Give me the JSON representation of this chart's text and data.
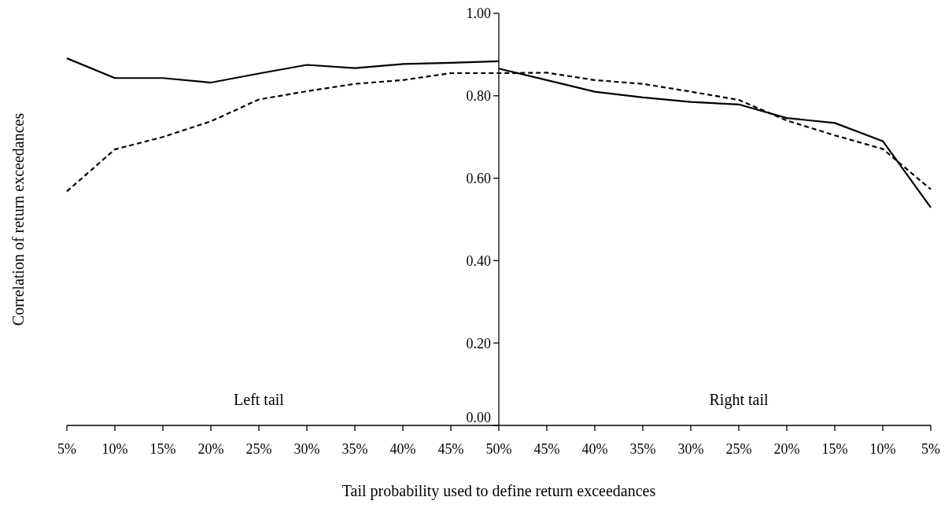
{
  "chart_data": {
    "type": "line",
    "xlabel": "Tail probability used to define return exceedances",
    "ylabel": "Correlation of return exceedances",
    "categories": [
      "5%",
      "10%",
      "15%",
      "20%",
      "25%",
      "30%",
      "35%",
      "40%",
      "45%",
      "50%",
      "45%",
      "40%",
      "35%",
      "30%",
      "25%",
      "20%",
      "15%",
      "10%",
      "5%"
    ],
    "series": [
      {
        "color": "#000000",
        "line_style": "solid",
        "values": [
          0.891,
          0.843,
          0.843,
          0.832,
          0.854,
          0.875,
          0.867,
          0.877,
          0.88,
          0.884,
          null,
          null,
          null,
          null,
          null,
          null,
          null,
          null,
          null
        ]
      },
      {
        "color": "#000000",
        "line_style": "solid",
        "values": [
          null,
          null,
          null,
          null,
          null,
          null,
          null,
          null,
          null,
          0.866,
          0.838,
          0.81,
          0.796,
          0.785,
          0.779,
          0.746,
          0.734,
          0.69,
          0.529
        ]
      },
      {
        "color": "#000000",
        "line_style": "dashed",
        "values": [
          0.568,
          0.67,
          0.7,
          0.738,
          0.791,
          0.811,
          0.829,
          0.838,
          0.855,
          0.855,
          0.856,
          0.838,
          0.829,
          0.81,
          0.79,
          0.74,
          0.704,
          0.671,
          0.573
        ]
      }
    ],
    "ylim": [
      0,
      1
    ],
    "yticks": [
      {
        "value": 0,
        "label": "0.00"
      },
      {
        "value": 0.2,
        "label": "0.20"
      },
      {
        "value": 0.4,
        "label": "0.40"
      },
      {
        "value": 0.6,
        "label": "0.60"
      },
      {
        "value": 0.8,
        "label": "0.80"
      },
      {
        "value": 1,
        "label": "1.00"
      }
    ],
    "annotations": [
      "Left tail",
      "Right tail"
    ],
    "grid": false,
    "marker": "none"
  }
}
